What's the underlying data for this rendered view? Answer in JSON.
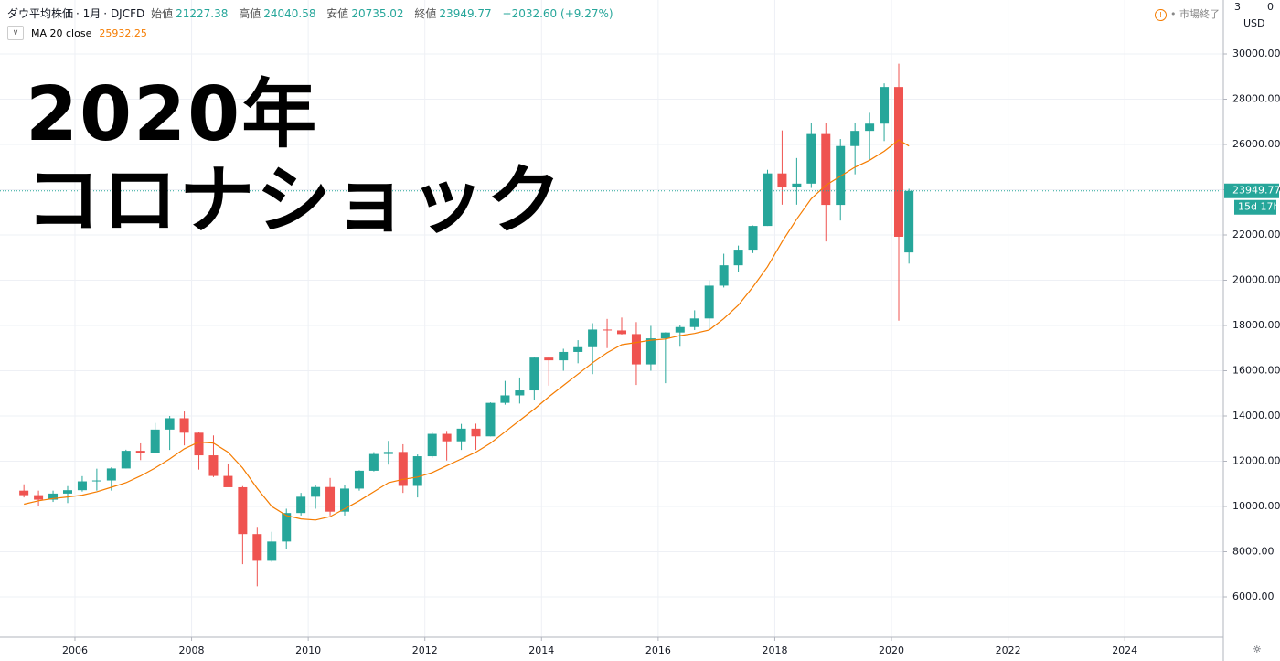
{
  "chart_data": {
    "type": "candlestick",
    "title": "ダウ平均株価",
    "interval": "1月",
    "source": "DJCFD",
    "ohlc_labels": {
      "open": "始値",
      "high": "高値",
      "low": "安値",
      "close": "終値"
    },
    "header_values": {
      "open": 21227.38,
      "high": 24040.58,
      "low": 20735.02,
      "close": 23949.77
    },
    "change": "+2032.60 (+9.27%)",
    "indicator": {
      "name": "MA 20 close",
      "value": 25932.25,
      "color": "#f57c00"
    },
    "market_status": "市場終了",
    "currency": "USD",
    "corner_labels": [
      "3",
      "0"
    ],
    "countdown": "15d 17h",
    "annotations": [
      "2020年",
      "コロナショック"
    ],
    "up_color": "#26a69a",
    "down_color": "#ef5350",
    "grid": true,
    "xlim": [
      2004.715,
      2025.69
    ],
    "xticks": [
      2006,
      2008,
      2010,
      2012,
      2014,
      2016,
      2018,
      2020,
      2022,
      2024
    ],
    "ylim": [
      4222,
      32384
    ],
    "yticks": [
      {
        "value": 6000,
        "label": "6000.00"
      },
      {
        "value": 8000,
        "label": "8000.00"
      },
      {
        "value": 10000,
        "label": "10000.00"
      },
      {
        "value": 12000,
        "label": "12000.00"
      },
      {
        "value": 14000,
        "label": "14000.00"
      },
      {
        "value": 16000,
        "label": "16000.00"
      },
      {
        "value": 18000,
        "label": "18000.00"
      },
      {
        "value": 20000,
        "label": "20000.00"
      },
      {
        "value": 22000,
        "label": "22000.00"
      },
      {
        "value": 24000,
        "label": "24000.00"
      },
      {
        "value": 26000,
        "label": "26000.00"
      },
      {
        "value": 28000,
        "label": "28000.00"
      },
      {
        "value": 30000,
        "label": "30000.00"
      }
    ],
    "x": [
      2005.125,
      2005.375,
      2005.625,
      2005.875,
      2006.125,
      2006.375,
      2006.625,
      2006.875,
      2007.125,
      2007.375,
      2007.625,
      2007.875,
      2008.125,
      2008.375,
      2008.625,
      2008.875,
      2009.125,
      2009.375,
      2009.625,
      2009.875,
      2010.125,
      2010.375,
      2010.625,
      2010.875,
      2011.125,
      2011.375,
      2011.625,
      2011.875,
      2012.125,
      2012.375,
      2012.625,
      2012.875,
      2013.125,
      2013.375,
      2013.625,
      2013.875,
      2014.125,
      2014.375,
      2014.625,
      2014.875,
      2015.125,
      2015.375,
      2015.625,
      2015.875,
      2016.125,
      2016.375,
      2016.625,
      2016.875,
      2017.125,
      2017.375,
      2017.625,
      2017.875,
      2018.125,
      2018.375,
      2018.625,
      2018.875,
      2019.125,
      2019.375,
      2019.625,
      2019.875,
      2020.125,
      2020.3
    ],
    "open": [
      10700,
      10500,
      10300,
      10570,
      10720,
      11110,
      11150,
      11680,
      12460,
      12350,
      13400,
      13900,
      13260,
      12260,
      11350,
      10850,
      8780,
      7600,
      8450,
      9710,
      10430,
      10860,
      9770,
      10790,
      11580,
      12320,
      12410,
      10910,
      12220,
      13210,
      12880,
      13440,
      13100,
      14580,
      14910,
      15130,
      16580,
      16460,
      16830,
      17040,
      17820,
      17780,
      17620,
      16280,
      17430,
      17690,
      17930,
      18310,
      19760,
      20660,
      21350,
      22400,
      24720,
      24100,
      24270,
      26460,
      23330,
      25930,
      26600,
      26920,
      28540,
      21227.38
    ],
    "high": [
      10980,
      10700,
      10700,
      10900,
      11340,
      11670,
      11730,
      12510,
      12790,
      13690,
      14000,
      14200,
      13280,
      13140,
      11900,
      10900,
      9100,
      8880,
      9900,
      10600,
      10950,
      11260,
      10950,
      11600,
      12400,
      12900,
      12750,
      12300,
      13300,
      13340,
      13650,
      13660,
      14600,
      15550,
      15700,
      16600,
      16600,
      16970,
      17350,
      18100,
      18290,
      18350,
      18150,
      17980,
      17700,
      18000,
      18670,
      19990,
      21170,
      21530,
      22420,
      24880,
      26620,
      25400,
      26950,
      26950,
      26240,
      26960,
      27400,
      28700,
      29570,
      24040.58
    ],
    "low": [
      10400,
      10000,
      10200,
      10150,
      10660,
      10700,
      10700,
      11680,
      12050,
      12350,
      12500,
      12700,
      11630,
      11300,
      10900,
      7450,
      6470,
      7550,
      8100,
      9600,
      9900,
      9600,
      9600,
      10700,
      11550,
      11850,
      10600,
      10400,
      12150,
      12030,
      12500,
      12500,
      13100,
      14500,
      14550,
      14700,
      15340,
      16000,
      16330,
      15850,
      17000,
      17600,
      15370,
      16000,
      15450,
      17060,
      17800,
      17880,
      19680,
      20380,
      21200,
      22400,
      23340,
      23340,
      24080,
      21710,
      22640,
      24680,
      25340,
      26150,
      18210,
      20735.02
    ],
    "close": [
      10500,
      10300,
      10570,
      10720,
      11110,
      11150,
      11680,
      12460,
      12350,
      13400,
      13900,
      13260,
      12260,
      11350,
      10850,
      8780,
      7600,
      8450,
      9710,
      10430,
      10860,
      9770,
      10790,
      11580,
      12320,
      12410,
      10910,
      12220,
      13210,
      12880,
      13440,
      13100,
      14580,
      14910,
      15130,
      16580,
      16460,
      16830,
      17040,
      17820,
      17780,
      17620,
      16280,
      17430,
      17690,
      17930,
      18310,
      19760,
      20660,
      21350,
      22400,
      24720,
      24100,
      24270,
      26460,
      23330,
      25930,
      26600,
      26920,
      28540,
      21920,
      23949.77
    ],
    "ma": [
      10100,
      10250,
      10350,
      10420,
      10500,
      10650,
      10850,
      11050,
      11350,
      11700,
      12100,
      12550,
      12850,
      12800,
      12400,
      11700,
      10800,
      10000,
      9600,
      9450,
      9400,
      9550,
      9900,
      10250,
      10650,
      11050,
      11200,
      11300,
      11500,
      11800,
      12100,
      12400,
      12800,
      13300,
      13800,
      14300,
      14850,
      15350,
      15850,
      16350,
      16800,
      17150,
      17250,
      17350,
      17400,
      17550,
      17650,
      17800,
      18300,
      18900,
      19700,
      20600,
      21700,
      22700,
      23600,
      24200,
      24600,
      25000,
      25300,
      25700,
      26200,
      25932.25
    ]
  }
}
